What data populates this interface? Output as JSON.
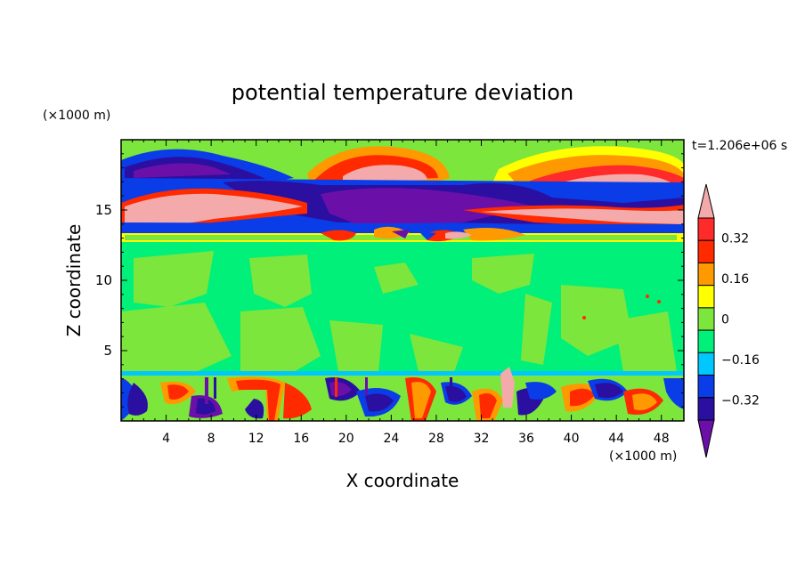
{
  "chart_data": {
    "type": "heatmap",
    "title": "potential temperature deviation",
    "xlabel": "X coordinate",
    "ylabel": "Z coordinate",
    "x_unit": "(×1000 m)",
    "y_unit": "(×1000 m)",
    "time_label": "t=1.206e+06 s",
    "xlim": [
      0,
      50
    ],
    "ylim": [
      0,
      20
    ],
    "x_ticks": [
      4,
      8,
      12,
      16,
      20,
      24,
      28,
      32,
      36,
      40,
      44,
      48
    ],
    "y_ticks": [
      5,
      10,
      15
    ],
    "colorbar": {
      "levels": [
        -0.4,
        -0.32,
        -0.24,
        -0.16,
        -0.08,
        0,
        0.08,
        0.16,
        0.24,
        0.32,
        0.4
      ],
      "labels": [
        "0.32",
        "0.16",
        "0",
        "−0.16",
        "−0.32"
      ],
      "label_values": [
        0.32,
        0.16,
        0,
        -0.16,
        -0.32
      ],
      "colors": [
        "#6a0fa8",
        "#2a0fa0",
        "#0a3ce8",
        "#00c8ff",
        "#00f07a",
        "#7ce63c",
        "#ffff00",
        "#ff9900",
        "#ff2a00",
        "#ff2a2a",
        "#f4aaaa"
      ],
      "extend": "both"
    }
  }
}
